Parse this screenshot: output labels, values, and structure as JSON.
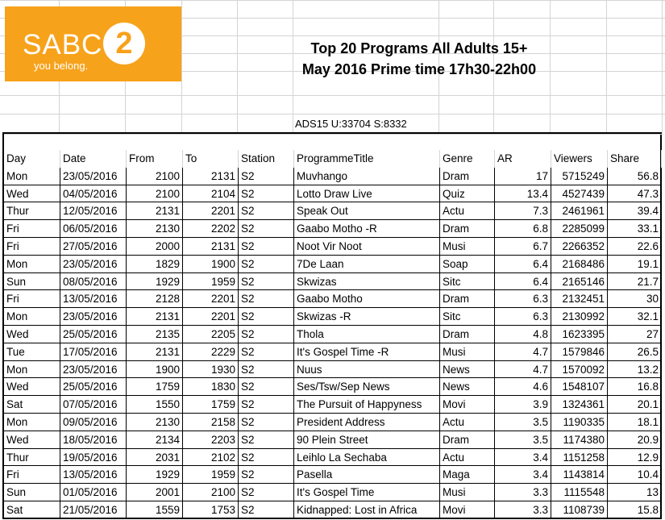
{
  "logo": {
    "wordmark": "SABC",
    "number": "2",
    "tagline": "you belong."
  },
  "title": {
    "line1": "Top 20 Programs All Adults 15+",
    "line2": "May  2016 Prime time 17h30-22h00"
  },
  "sample_info": "ADS15 U:33704 S:8332",
  "table": {
    "headers": [
      "Day",
      "Date",
      "From",
      "To",
      "Station",
      "ProgrammeTitle",
      "Genre",
      "AR",
      "Viewers",
      "Share"
    ],
    "rows": [
      [
        "Mon",
        "23/05/2016",
        "2100",
        "2131",
        "S2",
        "Muvhango",
        "Dram",
        "17",
        "5715249",
        "56.8"
      ],
      [
        "Wed",
        "04/05/2016",
        "2100",
        "2104",
        "S2",
        "Lotto Draw Live",
        "Quiz",
        "13.4",
        "4527439",
        "47.3"
      ],
      [
        "Thur",
        "12/05/2016",
        "2131",
        "2201",
        "S2",
        "Speak Out",
        "Actu",
        "7.3",
        "2461961",
        "39.4"
      ],
      [
        "Fri",
        "06/05/2016",
        "2130",
        "2202",
        "S2",
        "Gaabo Motho -R",
        "Dram",
        "6.8",
        "2285099",
        "33.1"
      ],
      [
        "Fri",
        "27/05/2016",
        "2000",
        "2131",
        "S2",
        "Noot Vir Noot",
        "Musi",
        "6.7",
        "2266352",
        "22.6"
      ],
      [
        "Mon",
        "23/05/2016",
        "1829",
        "1900",
        "S2",
        "7De Laan",
        "Soap",
        "6.4",
        "2168486",
        "19.1"
      ],
      [
        "Sun",
        "08/05/2016",
        "1929",
        "1959",
        "S2",
        "Skwizas",
        "Sitc",
        "6.4",
        "2165146",
        "21.7"
      ],
      [
        "Fri",
        "13/05/2016",
        "2128",
        "2201",
        "S2",
        "Gaabo Motho",
        "Dram",
        "6.3",
        "2132451",
        "30"
      ],
      [
        "Mon",
        "23/05/2016",
        "2131",
        "2201",
        "S2",
        "Skwizas -R",
        "Sitc",
        "6.3",
        "2130992",
        "32.1"
      ],
      [
        "Wed",
        "25/05/2016",
        "2135",
        "2205",
        "S2",
        "Thola",
        "Dram",
        "4.8",
        "1623395",
        "27"
      ],
      [
        "Tue",
        "17/05/2016",
        "2131",
        "2229",
        "S2",
        "It's Gospel Time -R",
        "Musi",
        "4.7",
        "1579846",
        "26.5"
      ],
      [
        "Mon",
        "23/05/2016",
        "1900",
        "1930",
        "S2",
        "Nuus",
        "News",
        "4.7",
        "1570092",
        "13.2"
      ],
      [
        "Wed",
        "25/05/2016",
        "1759",
        "1830",
        "S2",
        "Ses/Tsw/Sep News",
        "News",
        "4.6",
        "1548107",
        "16.8"
      ],
      [
        "Sat",
        "07/05/2016",
        "1550",
        "1759",
        "S2",
        "The Pursuit of Happyness",
        "Movi",
        "3.9",
        "1324361",
        "20.1"
      ],
      [
        "Mon",
        "09/05/2016",
        "2130",
        "2158",
        "S2",
        "President Address",
        "Actu",
        "3.5",
        "1190335",
        "18.1"
      ],
      [
        "Wed",
        "18/05/2016",
        "2134",
        "2203",
        "S2",
        "90 Plein Street",
        "Dram",
        "3.5",
        "1174380",
        "20.9"
      ],
      [
        "Thur",
        "19/05/2016",
        "2031",
        "2102",
        "S2",
        "Leihlo La Sechaba",
        "Actu",
        "3.4",
        "1151258",
        "12.9"
      ],
      [
        "Fri",
        "13/05/2016",
        "1929",
        "1959",
        "S2",
        "Pasella",
        "Maga",
        "3.4",
        "1143814",
        "10.4"
      ],
      [
        "Sun",
        "01/05/2016",
        "2001",
        "2100",
        "S2",
        "It's Gospel Time",
        "Musi",
        "3.3",
        "1115548",
        "13"
      ],
      [
        "Sat",
        "21/05/2016",
        "1559",
        "1753",
        "S2",
        "Kidnapped: Lost in Africa",
        "Movi",
        "3.3",
        "1108739",
        "15.8"
      ]
    ]
  },
  "colors": {
    "logo_orange": "#f7a21b",
    "grid": "#d4d4d4"
  }
}
